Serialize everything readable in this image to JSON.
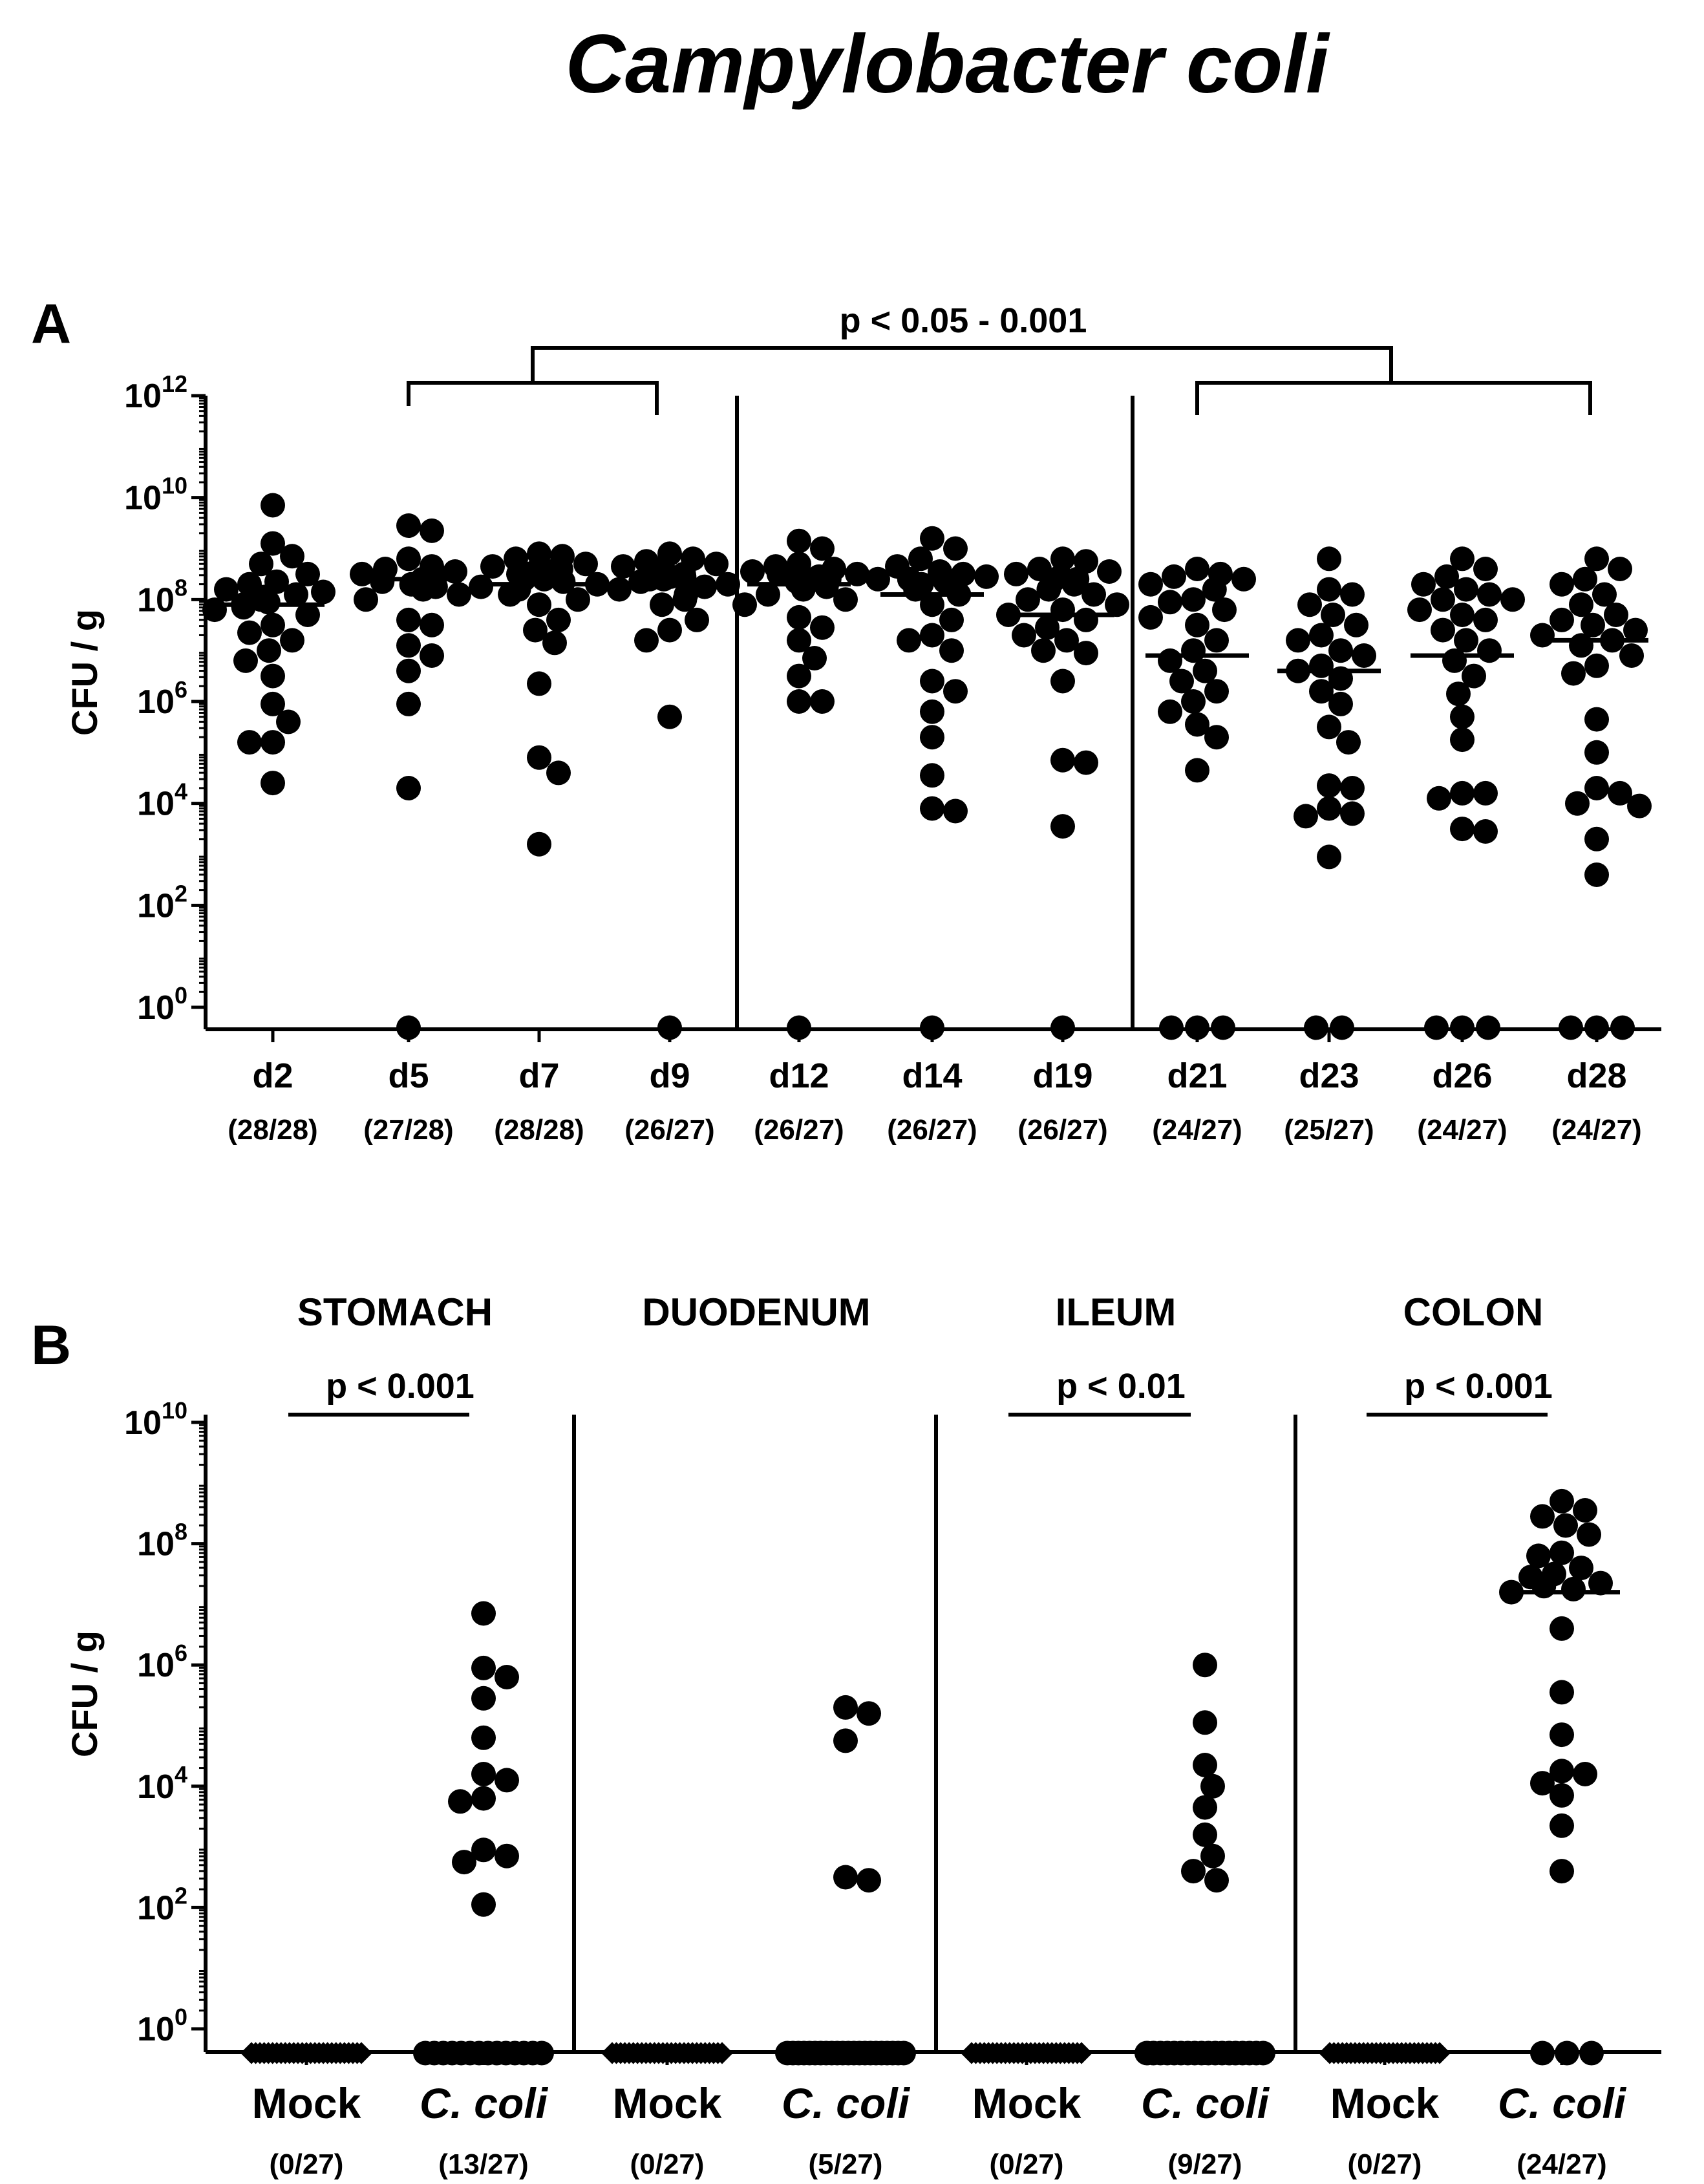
{
  "title": "Campylobacter coli",
  "chart_data": [
    {
      "panel": "A",
      "type": "scatter",
      "subtype": "dot-plot with median lines",
      "ylabel": "CFU / g",
      "yscale": "log10",
      "ylim_exponent": [
        0,
        12
      ],
      "yticks": [
        "0",
        "2",
        "4",
        "6",
        "8",
        "10",
        "12"
      ],
      "significance": "p < 0.05 - 0.001",
      "categories": [
        {
          "label": "d2",
          "fraction": "(28/28)",
          "median_log": 7.9,
          "values_log": [
            9.85,
            9.1,
            8.85,
            8.7,
            8.5,
            8.35,
            8.3,
            8.2,
            8.15,
            8.1,
            8.05,
            8.0,
            7.95,
            7.9,
            7.85,
            7.8,
            7.7,
            7.5,
            7.35,
            7.2,
            7.0,
            6.8,
            6.5,
            5.95,
            5.6,
            5.2,
            5.2,
            4.4
          ]
        },
        {
          "label": "d5",
          "fraction": "(27/28)",
          "median_log": 8.4,
          "values_log": [
            9.45,
            9.35,
            8.8,
            8.65,
            8.6,
            8.55,
            8.5,
            8.45,
            8.45,
            8.4,
            8.4,
            8.35,
            8.35,
            8.3,
            8.25,
            8.2,
            8.1,
            8.0,
            7.6,
            7.5,
            7.1,
            6.9,
            6.6,
            5.95,
            4.3,
            -0.4
          ]
        },
        {
          "label": "d7",
          "fraction": "(28/28)",
          "median_log": 8.3,
          "values_log": [
            8.9,
            8.85,
            8.8,
            8.7,
            8.65,
            8.6,
            8.55,
            8.55,
            8.5,
            8.5,
            8.45,
            8.4,
            8.4,
            8.35,
            8.3,
            8.25,
            8.2,
            8.1,
            8.0,
            7.9,
            7.6,
            7.4,
            7.15,
            6.35,
            4.9,
            4.6,
            3.2
          ]
        },
        {
          "label": "d9",
          "fraction": "(26/27)",
          "median_log": 8.3,
          "values_log": [
            8.9,
            8.8,
            8.75,
            8.7,
            8.65,
            8.6,
            8.55,
            8.55,
            8.5,
            8.5,
            8.45,
            8.45,
            8.4,
            8.4,
            8.35,
            8.3,
            8.25,
            8.2,
            8.1,
            8.0,
            7.9,
            7.6,
            7.4,
            7.2,
            5.7,
            -0.4
          ]
        },
        {
          "label": "d12",
          "fraction": "(26/27)",
          "median_log": 8.3,
          "values_log": [
            9.15,
            9.0,
            8.7,
            8.65,
            8.6,
            8.55,
            8.5,
            8.5,
            8.45,
            8.4,
            8.4,
            8.35,
            8.3,
            8.25,
            8.2,
            8.1,
            8.0,
            7.9,
            7.65,
            7.45,
            7.2,
            6.85,
            6.5,
            6.0,
            6.0,
            -0.4
          ]
        },
        {
          "label": "d14",
          "fraction": "(26/27)",
          "median_log": 8.1,
          "values_log": [
            9.2,
            9.0,
            8.8,
            8.65,
            8.55,
            8.5,
            8.45,
            8.4,
            8.4,
            8.35,
            8.3,
            8.2,
            8.1,
            7.9,
            7.6,
            7.3,
            7.2,
            7.0,
            6.4,
            6.2,
            5.8,
            5.3,
            4.55,
            3.85,
            3.9,
            -0.4
          ]
        },
        {
          "label": "d19",
          "fraction": "(26/27)",
          "median_log": 7.7,
          "values_log": [
            8.8,
            8.75,
            8.6,
            8.55,
            8.5,
            8.45,
            8.4,
            8.35,
            8.3,
            8.2,
            8.1,
            8.0,
            7.9,
            7.8,
            7.7,
            7.6,
            7.45,
            7.2,
            7.0,
            6.95,
            6.4,
            4.85,
            4.8,
            3.55,
            7.3,
            -0.4
          ]
        },
        {
          "label": "d21",
          "fraction": "(24/27)",
          "median_log": 6.9,
          "values_log": [
            8.6,
            8.5,
            8.45,
            8.4,
            8.3,
            8.2,
            8.0,
            7.8,
            7.5,
            7.2,
            7.0,
            6.8,
            6.6,
            6.4,
            6.2,
            6.0,
            5.8,
            5.55,
            5.3,
            4.65,
            7.95,
            7.65,
            -0.4,
            -0.4,
            -0.4
          ]
        },
        {
          "label": "d23",
          "fraction": "(25/27)",
          "median_log": 6.6,
          "values_log": [
            8.8,
            8.2,
            8.1,
            7.9,
            7.7,
            7.5,
            7.3,
            7.2,
            7.0,
            6.9,
            6.7,
            6.6,
            6.45,
            6.2,
            5.95,
            5.5,
            5.2,
            4.35,
            4.3,
            3.75,
            3.9,
            2.95,
            3.8,
            -0.4,
            -0.4
          ]
        },
        {
          "label": "d26",
          "fraction": "(24/27)",
          "median_log": 6.9,
          "values_log": [
            8.8,
            8.6,
            8.45,
            8.3,
            8.2,
            8.1,
            8.0,
            7.8,
            7.6,
            7.4,
            7.2,
            7.0,
            6.8,
            6.5,
            6.15,
            5.7,
            5.25,
            4.2,
            4.2,
            4.1,
            3.5,
            3.45,
            8.0,
            7.7,
            -0.4,
            -0.4,
            -0.4
          ]
        },
        {
          "label": "d28",
          "fraction": "(24/27)",
          "median_log": 7.2,
          "values_log": [
            8.8,
            8.6,
            8.4,
            8.3,
            8.1,
            7.9,
            7.7,
            7.6,
            7.5,
            7.4,
            7.3,
            7.2,
            7.1,
            6.9,
            6.7,
            6.55,
            5.65,
            5.0,
            4.3,
            4.2,
            4.0,
            3.95,
            3.3,
            2.6,
            -0.4,
            -0.4,
            -0.4
          ]
        }
      ]
    },
    {
      "panel": "B",
      "type": "scatter",
      "subtype": "dot-plot with median lines",
      "ylabel": "CFU / g",
      "yscale": "log10",
      "ylim_exponent": [
        0,
        10
      ],
      "yticks": [
        "0",
        "2",
        "4",
        "6",
        "8",
        "10"
      ],
      "regions": [
        {
          "name": "STOMACH",
          "pvalue": "p < 0.001"
        },
        {
          "name": "DUODENUM",
          "pvalue": ""
        },
        {
          "name": "ILEUM",
          "pvalue": "p < 0.01"
        },
        {
          "name": "COLON",
          "pvalue": "p < 0.001"
        }
      ],
      "categories": [
        {
          "region": "STOMACH",
          "label": "Mock",
          "italic": false,
          "fraction": "(0/27)",
          "median_log": null,
          "values_log": []
        },
        {
          "region": "STOMACH",
          "label": "C. coli",
          "italic": true,
          "fraction": "(13/27)",
          "median_log": null,
          "values_log": [
            6.85,
            5.95,
            5.8,
            5.45,
            4.8,
            4.2,
            4.1,
            3.8,
            3.75,
            2.95,
            2.85,
            2.75,
            2.05
          ]
        },
        {
          "region": "DUODENUM",
          "label": "Mock",
          "italic": false,
          "fraction": "(0/27)",
          "median_log": null,
          "values_log": []
        },
        {
          "region": "DUODENUM",
          "label": "C. coli",
          "italic": true,
          "fraction": "(5/27)",
          "median_log": null,
          "values_log": [
            5.3,
            5.2,
            4.75,
            2.5,
            2.45
          ]
        },
        {
          "region": "ILEUM",
          "label": "Mock",
          "italic": false,
          "fraction": "(0/27)",
          "median_log": null,
          "values_log": []
        },
        {
          "region": "ILEUM",
          "label": "C. coli",
          "italic": true,
          "fraction": "(9/27)",
          "median_log": null,
          "values_log": [
            6.0,
            5.05,
            4.35,
            4.0,
            3.65,
            3.2,
            2.85,
            2.6,
            2.45
          ]
        },
        {
          "region": "COLON",
          "label": "Mock",
          "italic": false,
          "fraction": "(0/27)",
          "median_log": null,
          "values_log": []
        },
        {
          "region": "COLON",
          "label": "C. coli",
          "italic": true,
          "fraction": "(24/27)",
          "median_log": 7.2,
          "values_log": [
            8.7,
            8.55,
            8.45,
            8.3,
            8.15,
            7.85,
            7.8,
            7.6,
            7.5,
            7.45,
            7.35,
            7.3,
            7.25,
            7.2,
            6.6,
            5.55,
            4.85,
            4.25,
            4.2,
            4.05,
            3.85,
            3.35,
            2.6
          ]
        }
      ]
    }
  ]
}
